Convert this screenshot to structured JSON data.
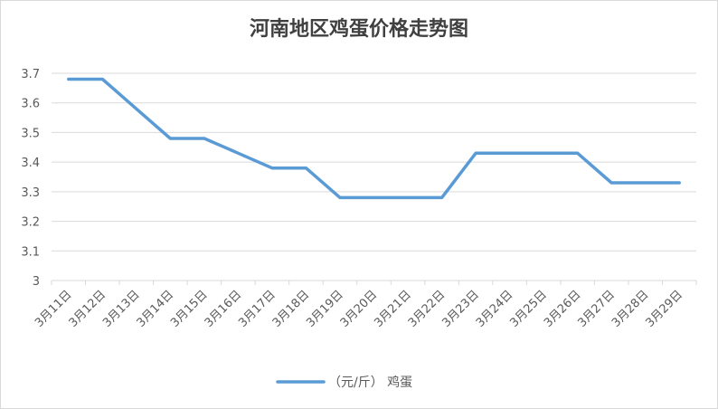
{
  "chart_data": {
    "type": "line",
    "title": "河南地区鸡蛋价格走势图",
    "x": [
      "3月11日",
      "3月12日",
      "3月13日",
      "3月14日",
      "3月15日",
      "3月16日",
      "3月17日",
      "3月18日",
      "3月19日",
      "3月20日",
      "3月21日",
      "3月22日",
      "3月23日",
      "3月24日",
      "3月25日",
      "3月26日",
      "3月27日",
      "3月28日",
      "3月29日"
    ],
    "series": [
      {
        "name": "（元/斤） 鸡蛋",
        "values": [
          3.68,
          3.68,
          3.58,
          3.48,
          3.48,
          3.43,
          3.38,
          3.38,
          3.28,
          3.28,
          3.28,
          3.28,
          3.43,
          3.43,
          3.43,
          3.43,
          3.33,
          3.33,
          3.33
        ],
        "color": "#5b9bd5"
      }
    ],
    "y_ticks": [
      "3",
      "3.1",
      "3.2",
      "3.3",
      "3.4",
      "3.5",
      "3.6",
      "3.7"
    ],
    "ylim": [
      3,
      3.7
    ],
    "grid": true,
    "legend_position": "bottom"
  }
}
